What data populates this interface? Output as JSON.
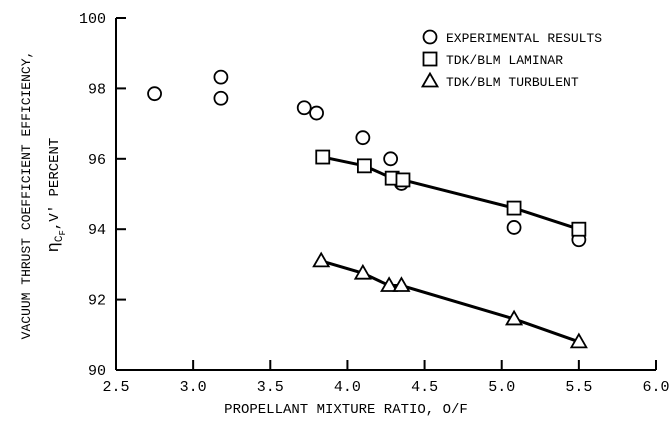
{
  "chart_data": {
    "type": "scatter",
    "title": "",
    "xlabel": "PROPELLANT MIXTURE RATIO, O/F",
    "ylabel_line1": "VACUUM THRUST COEFFICIENT EFFICIENCY,",
    "ylabel_line2_main": "η",
    "ylabel_line2_sub": "C",
    "ylabel_line2_subsub": "F",
    "ylabel_line2_rest": ",V'  PERCENT",
    "xlim": [
      2.5,
      6.0
    ],
    "ylim": [
      90,
      100
    ],
    "x_ticks": [
      2.5,
      3.0,
      3.5,
      4.0,
      4.5,
      5.0,
      5.5,
      6.0
    ],
    "x_tick_labels": [
      "2.5",
      "3.0",
      "3.5",
      "4.0",
      "4.5",
      "5.0",
      "5.5",
      "6.0"
    ],
    "y_ticks": [
      90,
      92,
      94,
      96,
      98,
      100
    ],
    "y_tick_labels": [
      "90",
      "92",
      "94",
      "96",
      "98",
      "100"
    ],
    "grid": false,
    "legend_position": "top-right",
    "series": [
      {
        "name": "EXPERIMENTAL RESULTS",
        "marker": "circle",
        "line": false,
        "points": [
          [
            2.75,
            97.85
          ],
          [
            3.18,
            98.32
          ],
          [
            3.18,
            97.72
          ],
          [
            3.72,
            97.45
          ],
          [
            3.8,
            97.3
          ],
          [
            4.1,
            96.6
          ],
          [
            4.28,
            96.0
          ],
          [
            4.35,
            95.3
          ],
          [
            5.08,
            94.05
          ],
          [
            5.5,
            93.7
          ]
        ]
      },
      {
        "name": "TDK/BLM LAMINAR",
        "marker": "square",
        "line": true,
        "points": [
          [
            3.84,
            96.05
          ],
          [
            4.11,
            95.8
          ],
          [
            4.29,
            95.45
          ],
          [
            4.36,
            95.4
          ],
          [
            5.08,
            94.6
          ],
          [
            5.5,
            94.0
          ]
        ]
      },
      {
        "name": "TDK/BLM TURBULENT",
        "marker": "triangle",
        "line": true,
        "points": [
          [
            3.83,
            93.1
          ],
          [
            4.1,
            92.75
          ],
          [
            4.27,
            92.4
          ],
          [
            4.35,
            92.4
          ],
          [
            5.08,
            91.45
          ],
          [
            5.5,
            90.8
          ]
        ]
      }
    ]
  }
}
